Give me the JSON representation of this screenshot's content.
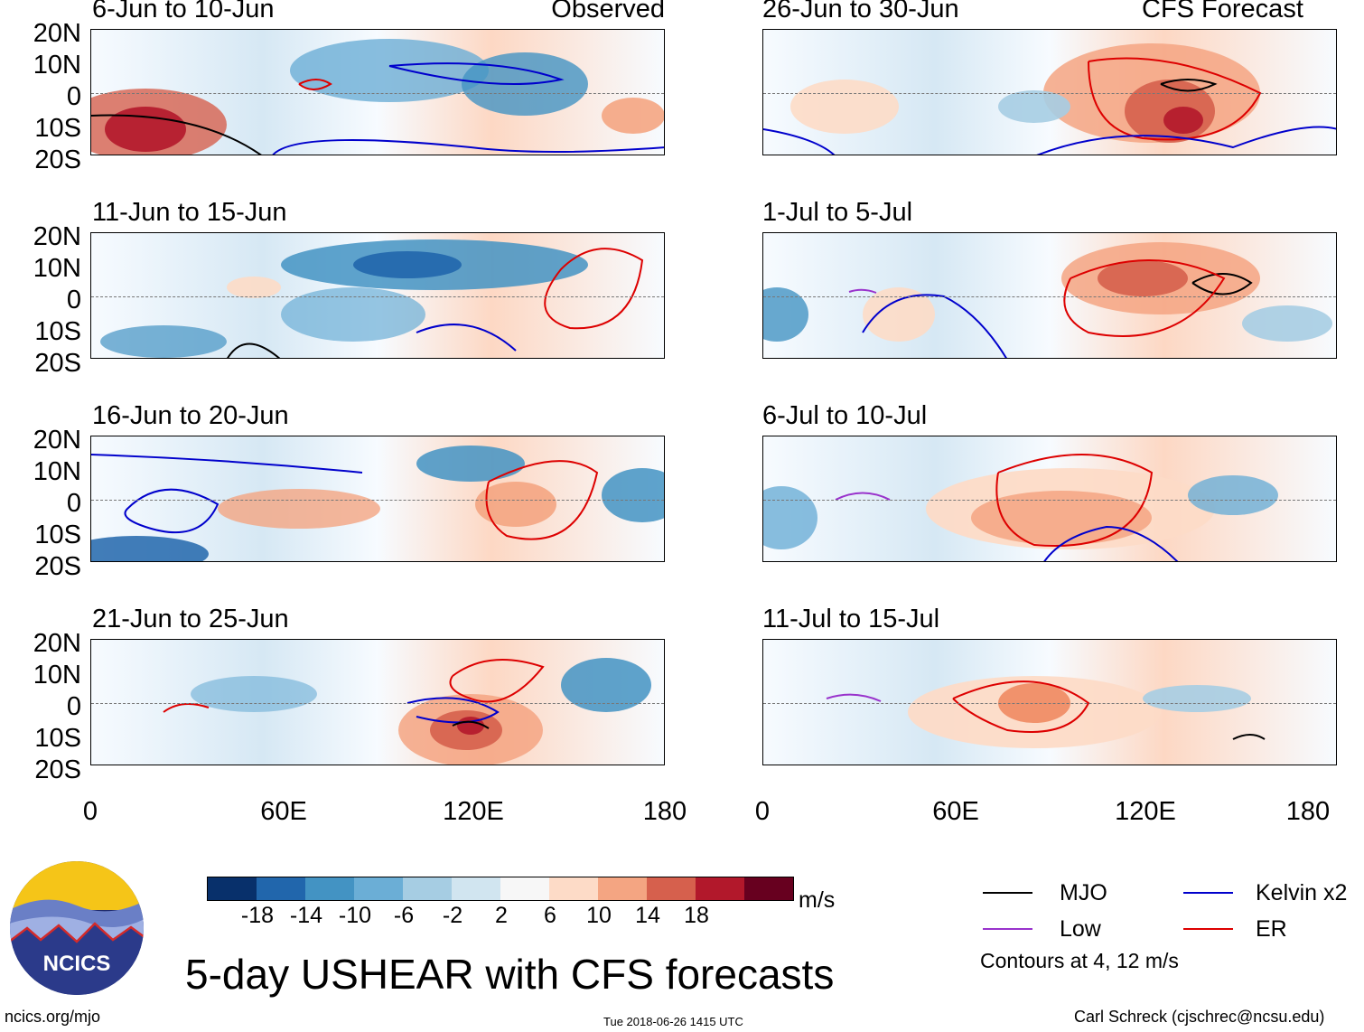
{
  "panels": [
    {
      "date": "6-Jun to 10-Jun",
      "tag": "Observed",
      "blobs": [
        [
          "#c4232a",
          "blob"
        ],
        [
          "#4a98c9",
          "blob"
        ],
        [
          "#3070b4",
          "blob"
        ]
      ]
    },
    {
      "date": "26-Jun to 30-Jun",
      "tag": "CFS Forecast",
      "blobs": [
        [
          "#c4232a",
          "blob"
        ],
        [
          "#a1cbe4",
          "blob"
        ]
      ]
    },
    {
      "date": "11-Jun to 15-Jun",
      "tag": "",
      "blobs": [
        [
          "#2066ac",
          "blob"
        ],
        [
          "#6baed6",
          "blob"
        ]
      ]
    },
    {
      "date": "1-Jul to 5-Jul",
      "tag": "",
      "blobs": [
        [
          "#e8735b",
          "blob"
        ],
        [
          "#9ecae1",
          "blob"
        ]
      ]
    },
    {
      "date": "16-Jun to 20-Jun",
      "tag": "",
      "blobs": [
        [
          "#2066ac",
          "blob"
        ],
        [
          "#f4a582",
          "blob"
        ]
      ]
    },
    {
      "date": "6-Jul to 10-Jul",
      "tag": "",
      "blobs": [
        [
          "#f4a582",
          "blob"
        ],
        [
          "#6baed6",
          "blob"
        ]
      ]
    },
    {
      "date": "21-Jun to 25-Jun",
      "tag": "",
      "blobs": [
        [
          "#b2182b",
          "blob"
        ],
        [
          "#4393c3",
          "blob"
        ]
      ]
    },
    {
      "date": "11-Jul to 15-Jul",
      "tag": "",
      "blobs": [
        [
          "#ef8a62",
          "blob"
        ],
        [
          "#d1e5f0",
          "blob"
        ]
      ]
    }
  ],
  "lat_labels": [
    "20N",
    "10N",
    "0",
    "10S",
    "20S"
  ],
  "lon_labels": [
    "0",
    "60E",
    "120E",
    "180"
  ],
  "colorbar": {
    "colors": [
      "#08306b",
      "#2166ac",
      "#4393c3",
      "#6baed6",
      "#a6cde3",
      "#d1e5f0",
      "#f7f7f7",
      "#fddbc7",
      "#f4a582",
      "#d6604d",
      "#b2182b",
      "#67001f"
    ],
    "ticks": [
      "-18",
      "-14",
      "-10",
      "-6",
      "-2",
      "2",
      "6",
      "10",
      "14",
      "18"
    ],
    "units": "m/s"
  },
  "legend": {
    "mjo": {
      "label": "MJO",
      "color": "#000000"
    },
    "kelvin": {
      "label": "Kelvin x2",
      "color": "#0000cc"
    },
    "low": {
      "label": "Low",
      "color": "#9933cc"
    },
    "er": {
      "label": "ER",
      "color": "#dd0000"
    },
    "note": "Contours at 4, 12 m/s"
  },
  "logo_text": "NCICS",
  "title": "5-day USHEAR with CFS forecasts",
  "footer": {
    "left": "ncics.org/mjo",
    "center": "Tue 2018-06-26 1415 UTC",
    "right": "Carl Schreck (cjschrec@ncsu.edu)"
  }
}
